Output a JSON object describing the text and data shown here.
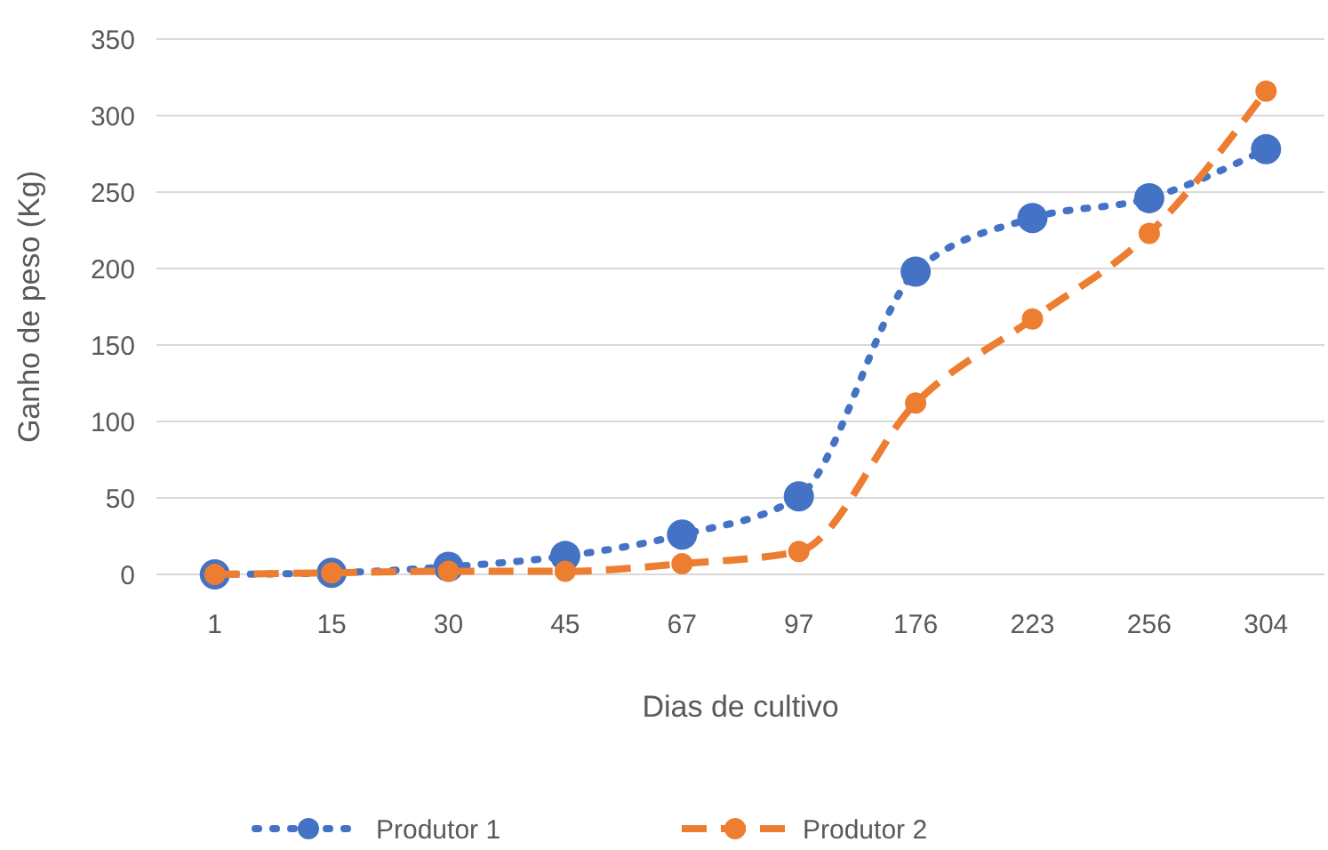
{
  "chart_data": {
    "type": "line",
    "xlabel": "Dias de cultivo",
    "ylabel": "Ganho de peso (Kg)",
    "categories": [
      "1",
      "15",
      "30",
      "45",
      "67",
      "97",
      "176",
      "223",
      "256",
      "304"
    ],
    "series": [
      {
        "name": "Produtor 1",
        "color": "#4472c4",
        "line_style": "dotted",
        "marker": "circle",
        "values": [
          0,
          1,
          5,
          12,
          26,
          51,
          198,
          233,
          246,
          278
        ]
      },
      {
        "name": "Produtor 2",
        "color": "#ed7d31",
        "line_style": "dashed",
        "marker": "circle",
        "values": [
          0,
          1,
          2,
          2,
          7,
          15,
          112,
          167,
          223,
          316
        ]
      }
    ],
    "ylim": [
      0,
      350
    ],
    "yticks": [
      0,
      50,
      100,
      150,
      200,
      250,
      300,
      350
    ],
    "grid": "y",
    "legend": "bottom"
  }
}
